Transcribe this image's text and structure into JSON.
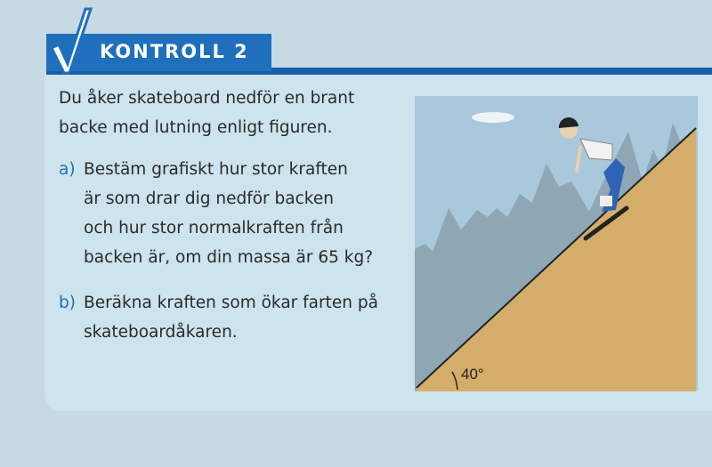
{
  "header": {
    "title": "KONTROLL 2",
    "icon": "checkmark-icon"
  },
  "intro": [
    "Du åker skateboard nedför en brant",
    "backe med lutning enligt figuren."
  ],
  "questions": [
    {
      "label": "a)",
      "lines": [
        "Bestäm grafiskt hur stor kraften",
        "är som drar dig nedför backen",
        "och hur stor normalkraften från",
        "backen är, om din massa är 65 kg?"
      ]
    },
    {
      "label": "b)",
      "lines": [
        "Beräkna kraften som ökar farten på",
        "skateboardåkaren."
      ]
    }
  ],
  "figure": {
    "angle_label": "40°"
  },
  "colors": {
    "accent": "#1f6fbd",
    "slope": "#d4ad6a",
    "sky": "#a9c8dc"
  }
}
